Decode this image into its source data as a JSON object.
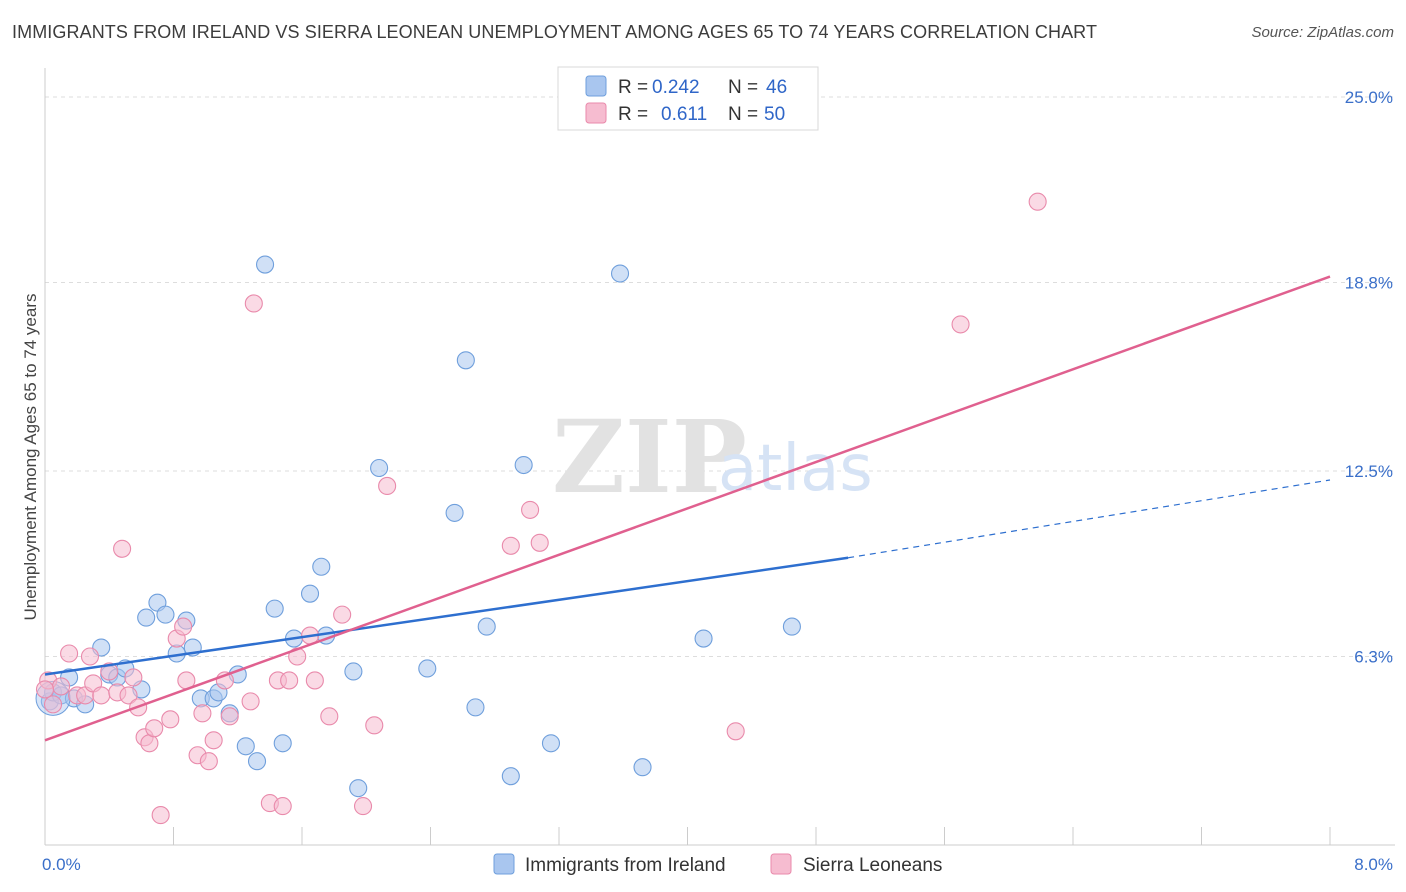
{
  "title": "IMMIGRANTS FROM IRELAND VS SIERRA LEONEAN UNEMPLOYMENT AMONG AGES 65 TO 74 YEARS CORRELATION CHART",
  "source": "Source: ZipAtlas.com",
  "watermark": {
    "zip": "ZIP",
    "atlas": "atlas"
  },
  "colors": {
    "blue_fill": "#a9c6ef",
    "blue_stroke": "#6f9fdc",
    "blue_line": "#2e6fcf",
    "pink_fill": "#f6bcd0",
    "pink_stroke": "#e98aab",
    "pink_line": "#e0608f",
    "axis_text": "#3a6fc9",
    "grid": "#dddddd"
  },
  "legend": {
    "rows": [
      {
        "r_label": "R =",
        "r_value": "0.242",
        "n_label": "N =",
        "n_value": "46",
        "color": "blue"
      },
      {
        "r_label": "R =",
        "r_value": "0.611",
        "n_label": "N =",
        "n_value": "50",
        "color": "pink"
      }
    ]
  },
  "bottom_legend": [
    {
      "label": "Immigrants from Ireland",
      "color": "blue"
    },
    {
      "label": "Sierra Leoneans",
      "color": "pink"
    }
  ],
  "chart_data": {
    "type": "scatter",
    "title": "IMMIGRANTS FROM IRELAND VS SIERRA LEONEAN UNEMPLOYMENT AMONG AGES 65 TO 74 YEARS CORRELATION CHART",
    "xlabel": "",
    "ylabel": "Unemployment Among Ages 65 to 74 years",
    "xlim": [
      0,
      8.0
    ],
    "ylim": [
      0,
      25.0
    ],
    "x_tick_labels": [
      {
        "value": 0,
        "label": "0.0%"
      },
      {
        "value": 8.0,
        "label": "8.0%"
      }
    ],
    "y_tick_labels": [
      {
        "value": 6.3,
        "label": "6.3%"
      },
      {
        "value": 12.5,
        "label": "12.5%"
      },
      {
        "value": 18.8,
        "label": "18.8%"
      },
      {
        "value": 25.0,
        "label": "25.0%"
      }
    ],
    "series": [
      {
        "name": "Immigrants from Ireland",
        "color": "blue",
        "points": [
          [
            0.03,
            4.8
          ],
          [
            0.05,
            5.1
          ],
          [
            0.1,
            5.0
          ],
          [
            0.15,
            5.6
          ],
          [
            0.18,
            4.9
          ],
          [
            0.25,
            4.7
          ],
          [
            0.35,
            6.6
          ],
          [
            0.4,
            5.7
          ],
          [
            0.45,
            5.6
          ],
          [
            0.5,
            5.9
          ],
          [
            0.6,
            5.2
          ],
          [
            0.63,
            7.6
          ],
          [
            0.7,
            8.1
          ],
          [
            0.75,
            7.7
          ],
          [
            0.82,
            6.4
          ],
          [
            0.88,
            7.5
          ],
          [
            0.92,
            6.6
          ],
          [
            0.97,
            4.9
          ],
          [
            1.05,
            4.9
          ],
          [
            1.08,
            5.1
          ],
          [
            1.15,
            4.4
          ],
          [
            1.2,
            5.7
          ],
          [
            1.25,
            3.3
          ],
          [
            1.32,
            2.8
          ],
          [
            1.37,
            19.4
          ],
          [
            1.43,
            7.9
          ],
          [
            1.48,
            3.4
          ],
          [
            1.55,
            6.9
          ],
          [
            1.65,
            8.4
          ],
          [
            1.72,
            9.3
          ],
          [
            1.75,
            7.0
          ],
          [
            1.92,
            5.8
          ],
          [
            1.95,
            1.9
          ],
          [
            2.08,
            12.6
          ],
          [
            2.38,
            5.9
          ],
          [
            2.55,
            11.1
          ],
          [
            2.62,
            16.2
          ],
          [
            2.68,
            4.6
          ],
          [
            2.75,
            7.3
          ],
          [
            2.9,
            2.3
          ],
          [
            2.98,
            12.7
          ],
          [
            3.15,
            3.4
          ],
          [
            3.58,
            19.1
          ],
          [
            3.72,
            2.6
          ],
          [
            4.1,
            6.9
          ],
          [
            4.65,
            7.3
          ]
        ]
      },
      {
        "name": "Sierra Leoneans",
        "color": "pink",
        "points": [
          [
            0.02,
            5.5
          ],
          [
            0.05,
            4.7
          ],
          [
            0.1,
            5.3
          ],
          [
            0.15,
            6.4
          ],
          [
            0.2,
            5.0
          ],
          [
            0.25,
            5.0
          ],
          [
            0.28,
            6.3
          ],
          [
            0.3,
            5.4
          ],
          [
            0.35,
            5.0
          ],
          [
            0.4,
            5.8
          ],
          [
            0.45,
            5.1
          ],
          [
            0.48,
            9.9
          ],
          [
            0.52,
            5.0
          ],
          [
            0.55,
            5.6
          ],
          [
            0.58,
            4.6
          ],
          [
            0.62,
            3.6
          ],
          [
            0.65,
            3.4
          ],
          [
            0.68,
            3.9
          ],
          [
            0.72,
            1.0
          ],
          [
            0.78,
            4.2
          ],
          [
            0.82,
            6.9
          ],
          [
            0.86,
            7.3
          ],
          [
            0.88,
            5.5
          ],
          [
            0.95,
            3.0
          ],
          [
            0.98,
            4.4
          ],
          [
            1.02,
            2.8
          ],
          [
            1.05,
            3.5
          ],
          [
            1.12,
            5.5
          ],
          [
            1.15,
            4.3
          ],
          [
            1.28,
            4.8
          ],
          [
            1.3,
            18.1
          ],
          [
            1.4,
            1.4
          ],
          [
            1.45,
            5.5
          ],
          [
            1.48,
            1.3
          ],
          [
            1.52,
            5.5
          ],
          [
            1.57,
            6.3
          ],
          [
            1.65,
            7.0
          ],
          [
            1.68,
            5.5
          ],
          [
            1.77,
            4.3
          ],
          [
            1.85,
            7.7
          ],
          [
            1.98,
            1.3
          ],
          [
            2.05,
            4.0
          ],
          [
            2.13,
            12.0
          ],
          [
            2.9,
            10.0
          ],
          [
            3.02,
            11.2
          ],
          [
            3.08,
            10.1
          ],
          [
            4.3,
            3.8
          ],
          [
            5.7,
            17.4
          ],
          [
            6.18,
            21.5
          ],
          [
            0.0,
            5.2
          ]
        ]
      }
    ],
    "trend_lines": [
      {
        "series": "Immigrants from Ireland",
        "x": [
          0,
          5.0
        ],
        "y": [
          5.7,
          9.6
        ],
        "dashed_to_x": 8.0,
        "dashed_to_y": 12.2
      },
      {
        "series": "Sierra Leoneans",
        "x": [
          0,
          8.0
        ],
        "y": [
          3.5,
          19.0
        ]
      }
    ],
    "gridlines": true
  }
}
